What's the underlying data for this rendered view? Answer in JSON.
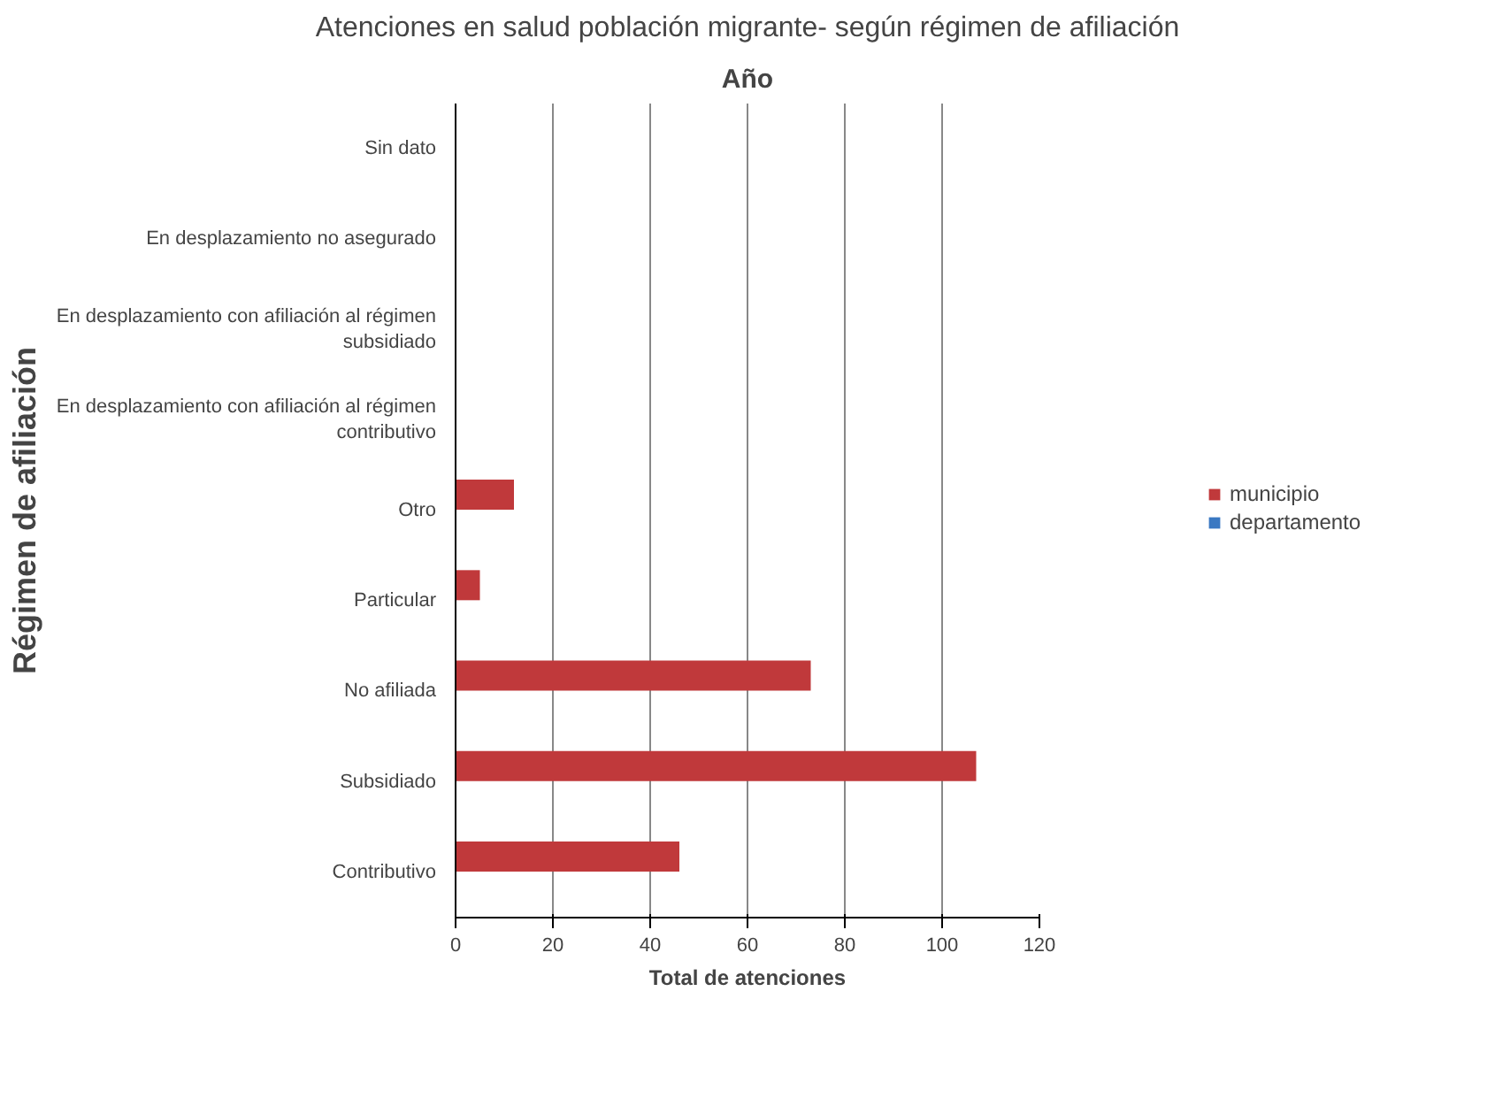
{
  "chart_data": {
    "type": "bar",
    "orientation": "horizontal",
    "title": "Atenciones en salud población migrante- según régimen de afiliación",
    "subtitle": "Año",
    "xlabel": "Total de atenciones",
    "ylabel": "Régimen de afiliación",
    "categories": [
      "Sin dato",
      "En desplazamiento no asegurado",
      "En desplazamiento con afiliación al régimen subsidiado",
      "En desplazamiento con afiliación al régimen contributivo",
      "Otro",
      "Particular",
      "No afiliada",
      "Subsidiado",
      "Contributivo"
    ],
    "series": [
      {
        "name": "municipio",
        "color": "#c0393b",
        "values": [
          null,
          null,
          null,
          null,
          12,
          5,
          73,
          107,
          46
        ]
      },
      {
        "name": "departamento",
        "color": "#3a78c2",
        "values": [
          null,
          null,
          null,
          null,
          null,
          null,
          null,
          null,
          null
        ]
      }
    ],
    "xlim": [
      0,
      120
    ],
    "xticks": [
      0,
      20,
      40,
      60,
      80,
      100,
      120
    ],
    "grid": "x",
    "legend": "right"
  }
}
